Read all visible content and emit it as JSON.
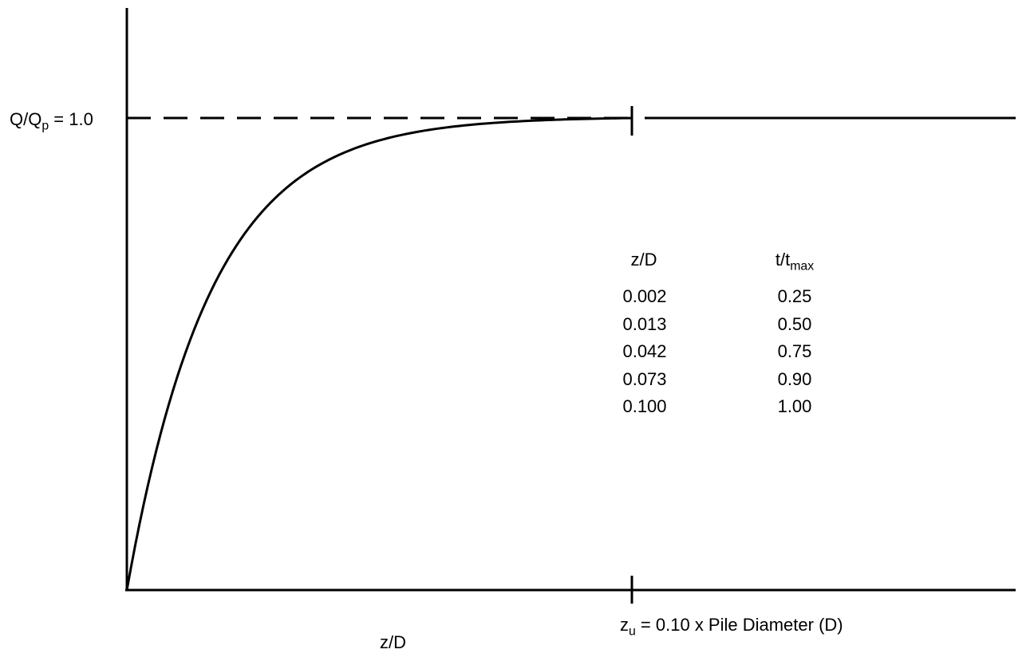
{
  "chart_data": {
    "type": "line",
    "xlabel": "z/D",
    "y_reference": {
      "label_main": "Q/Q",
      "label_sub": "p",
      "label_value": " = 1.0",
      "value": 1.0
    },
    "x_marker": {
      "label_main": "z",
      "label_sub": "u",
      "label_rest": " = 0.10 x Pile Diameter (D)",
      "value": 0.1
    },
    "series": [
      {
        "x": [
          0,
          0.002,
          0.013,
          0.042,
          0.073,
          0.1,
          0.176
        ],
        "y": [
          0,
          0.25,
          0.5,
          0.75,
          0.9,
          1.0,
          1.0
        ]
      }
    ],
    "xlim": [
      0,
      0.176
    ],
    "ylim": [
      0,
      1.0
    ],
    "table": {
      "headers": [
        {
          "main": "z/D",
          "sub": ""
        },
        {
          "main": "t/t",
          "sub": "max"
        }
      ],
      "rows": [
        [
          "0.002",
          "0.25"
        ],
        [
          "0.013",
          "0.50"
        ],
        [
          "0.042",
          "0.75"
        ],
        [
          "0.073",
          "0.90"
        ],
        [
          "0.100",
          "1.00"
        ]
      ]
    }
  }
}
